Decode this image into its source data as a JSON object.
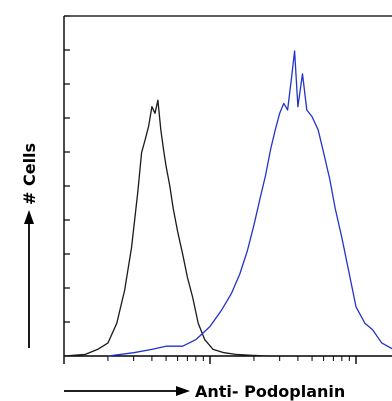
{
  "chart_data": {
    "type": "line",
    "xlabel": "Anti- Podoplanin",
    "ylabel": "# Cells",
    "x_scale": "log",
    "xlim": [
      1,
      10000
    ],
    "ylim": [
      0,
      100
    ],
    "grid": false,
    "legend": "none",
    "series": [
      {
        "color": "#1a1a1a",
        "x": [
          1.0,
          1.4,
          1.7,
          2.0,
          2.3,
          2.6,
          2.9,
          3.2,
          3.4,
          3.6,
          3.8,
          4.0,
          4.2,
          4.4,
          4.6,
          4.8,
          5.0,
          5.3,
          5.6,
          6.0,
          6.5,
          7.0,
          7.6,
          8.3,
          9.2,
          10.5,
          12.5,
          15.0,
          19.0,
          25.0
        ],
        "y": [
          0,
          0.5,
          2,
          4,
          10,
          20,
          33,
          50,
          62,
          66,
          70,
          76,
          74,
          78,
          69,
          63,
          58,
          52,
          45,
          38,
          31,
          24,
          18,
          10,
          5,
          2,
          1,
          0.5,
          0.2,
          0
        ]
      },
      {
        "color": "#2233cc",
        "x": [
          2.0,
          3.0,
          4.0,
          5.0,
          6.5,
          8.0,
          10.0,
          12.0,
          14.0,
          16.0,
          18.0,
          20.0,
          22.0,
          24.0,
          26.0,
          28.0,
          30.0,
          32.0,
          34.0,
          36.0,
          38.0,
          40.0,
          43.0,
          46.0,
          50.0,
          55.0,
          60.0,
          66.0,
          72.0,
          80.0,
          90.0,
          100.0,
          115.0,
          130.0,
          150.0,
          180.0,
          220.0,
          280.0
        ],
        "y": [
          0,
          1,
          2,
          3,
          3,
          5,
          9,
          14,
          19,
          25,
          32,
          40,
          48,
          55,
          63,
          69,
          74,
          77,
          75,
          84,
          93,
          76,
          86,
          75,
          73,
          69,
          62,
          54,
          45,
          36,
          25,
          15,
          10,
          8,
          4,
          2,
          1,
          0
        ]
      }
    ]
  }
}
